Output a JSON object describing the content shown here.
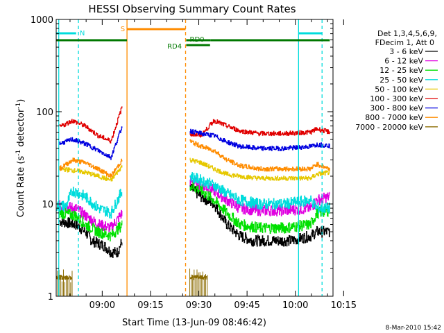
{
  "chart_data": {
    "type": "line",
    "title": "HESSI Observing Summary Count Rates",
    "xlabel": "Start Time (13-Jun-09 08:46:42)",
    "ylabel_main": "Count Rate (s",
    "ylabel_sup1": "-1",
    "ylabel_mid": " detector",
    "ylabel_sup2": "-1",
    "ylabel_end": ")",
    "y_scale": "log",
    "ylim": [
      1,
      1000
    ],
    "xlim_min": [
      -1,
      85
    ],
    "x_ticks": [
      {
        "t": 13.3,
        "label": "09:00"
      },
      {
        "t": 28.3,
        "label": "09:15"
      },
      {
        "t": 43.3,
        "label": "09:30"
      },
      {
        "t": 58.3,
        "label": "09:45"
      },
      {
        "t": 73.3,
        "label": "10:00"
      },
      {
        "t": 88.3,
        "label": "10:15"
      }
    ],
    "x_tick_labels_alt": [
      "09:00",
      "09:15",
      "09:30",
      "09:45",
      "10:00",
      "10:15"
    ],
    "y_ticks": [
      {
        "v": 1,
        "label": "1"
      },
      {
        "v": 10,
        "label": "10"
      },
      {
        "v": 100,
        "label": "100"
      },
      {
        "v": 1000,
        "label": "1000"
      }
    ],
    "legend_header": [
      "Det 1,3,4,5,6,9,",
      "FDecim 1, Att 0"
    ],
    "series": [
      {
        "name": "3 - 6 keV",
        "color": "#000000",
        "seg1": [
          [
            0,
            6.5
          ],
          [
            5,
            6
          ],
          [
            8,
            5
          ],
          [
            10,
            4
          ],
          [
            14,
            3.5
          ],
          [
            16,
            3
          ],
          [
            18,
            3
          ],
          [
            19.5,
            4
          ]
        ],
        "seg2": [
          [
            40.5,
            15
          ],
          [
            44,
            12
          ],
          [
            48,
            10
          ],
          [
            52,
            6
          ],
          [
            56,
            4.5
          ],
          [
            60,
            4
          ],
          [
            66,
            4
          ],
          [
            72,
            4
          ],
          [
            78,
            4.5
          ],
          [
            80,
            5
          ],
          [
            84,
            5
          ]
        ]
      },
      {
        "name": "6 - 12 keV",
        "color": "#e000e0",
        "seg1": [
          [
            0,
            9.5
          ],
          [
            5,
            9
          ],
          [
            8,
            7.5
          ],
          [
            12,
            6
          ],
          [
            16,
            5.5
          ],
          [
            19.5,
            8
          ]
        ],
        "seg2": [
          [
            40.5,
            18
          ],
          [
            44,
            16
          ],
          [
            48,
            14
          ],
          [
            52,
            11
          ],
          [
            56,
            9
          ],
          [
            62,
            8.5
          ],
          [
            70,
            8.5
          ],
          [
            78,
            9
          ],
          [
            80,
            11
          ],
          [
            84,
            12
          ]
        ]
      },
      {
        "name": "12 - 25 keV",
        "color": "#00e000",
        "seg1": [
          [
            0,
            8
          ],
          [
            5,
            7.5
          ],
          [
            8,
            6
          ],
          [
            12,
            5
          ],
          [
            16,
            4.5
          ],
          [
            19.5,
            6
          ]
        ],
        "seg2": [
          [
            40.5,
            16
          ],
          [
            44,
            14
          ],
          [
            48,
            11
          ],
          [
            52,
            8
          ],
          [
            56,
            6
          ],
          [
            62,
            5.5
          ],
          [
            70,
            5.5
          ],
          [
            78,
            6
          ],
          [
            80,
            8
          ],
          [
            84,
            8.5
          ]
        ]
      },
      {
        "name": "25 - 50 keV",
        "color": "#00dcdc",
        "seg1": [
          [
            -1,
            9.5
          ],
          [
            2,
            9.5
          ],
          [
            4,
            14
          ],
          [
            8,
            12
          ],
          [
            12,
            9
          ],
          [
            16,
            8
          ],
          [
            19.5,
            14
          ]
        ],
        "seg2": [
          [
            40.5,
            20
          ],
          [
            44,
            18
          ],
          [
            48,
            16
          ],
          [
            52,
            13
          ],
          [
            56,
            11
          ],
          [
            62,
            10
          ],
          [
            70,
            10
          ],
          [
            78,
            11
          ],
          [
            80,
            9
          ],
          [
            84,
            9
          ]
        ]
      },
      {
        "name": "50 - 100 keV",
        "color": "#e6c800",
        "seg1": [
          [
            0,
            24
          ],
          [
            5,
            23
          ],
          [
            8,
            22
          ],
          [
            12,
            20
          ],
          [
            16,
            18
          ],
          [
            19.5,
            26
          ]
        ],
        "seg2": [
          [
            40.5,
            30
          ],
          [
            44,
            28
          ],
          [
            48,
            24
          ],
          [
            52,
            21
          ],
          [
            56,
            20
          ],
          [
            62,
            19
          ],
          [
            70,
            19
          ],
          [
            78,
            19
          ],
          [
            80,
            21
          ],
          [
            84,
            22
          ]
        ]
      },
      {
        "name": "100 - 300 keV",
        "color": "#e00000",
        "seg1": [
          [
            0,
            68
          ],
          [
            4,
            80
          ],
          [
            8,
            70
          ],
          [
            12,
            55
          ],
          [
            16,
            48
          ],
          [
            19.5,
            115
          ]
        ],
        "seg2": [
          [
            40.5,
            58
          ],
          [
            44,
            55
          ],
          [
            48,
            80
          ],
          [
            52,
            70
          ],
          [
            56,
            62
          ],
          [
            62,
            58
          ],
          [
            70,
            58
          ],
          [
            78,
            60
          ],
          [
            80,
            65
          ],
          [
            84,
            60
          ]
        ]
      },
      {
        "name": "300 - 800 keV",
        "color": "#0000e0",
        "seg1": [
          [
            0,
            45
          ],
          [
            4,
            50
          ],
          [
            8,
            45
          ],
          [
            12,
            38
          ],
          [
            16,
            32
          ],
          [
            19.5,
            70
          ]
        ],
        "seg2": [
          [
            40.5,
            62
          ],
          [
            44,
            58
          ],
          [
            48,
            55
          ],
          [
            52,
            47
          ],
          [
            56,
            42
          ],
          [
            62,
            40
          ],
          [
            70,
            40
          ],
          [
            78,
            42
          ],
          [
            80,
            44
          ],
          [
            84,
            43
          ]
        ]
      },
      {
        "name": "800 - 7000 keV",
        "color": "#ff8c00",
        "seg1": [
          [
            0,
            24
          ],
          [
            4,
            30
          ],
          [
            8,
            28
          ],
          [
            12,
            24
          ],
          [
            16,
            20
          ],
          [
            19.5,
            30
          ]
        ],
        "seg2": [
          [
            40.5,
            48
          ],
          [
            44,
            42
          ],
          [
            48,
            38
          ],
          [
            52,
            30
          ],
          [
            56,
            26
          ],
          [
            62,
            24
          ],
          [
            70,
            24
          ],
          [
            78,
            24
          ],
          [
            80,
            27
          ],
          [
            84,
            24
          ]
        ]
      },
      {
        "name": "7000 - 20000 keV",
        "color": "#8b6b00",
        "seg1": [
          [
            -1,
            1.6
          ],
          [
            4,
            1.6
          ]
        ],
        "seg2": [
          [
            40.5,
            1.6
          ],
          [
            46,
            1.6
          ]
        ]
      }
    ],
    "flags": [
      {
        "label": "N",
        "color": "#00dcdc"
      },
      {
        "label": "S",
        "color": "#ff8c00"
      },
      {
        "label": "RD0",
        "color": "#007800"
      },
      {
        "label": "RD4",
        "color": "#007800"
      }
    ]
  },
  "footer": {
    "timestamp": "8-Mar-2010 15:42"
  }
}
